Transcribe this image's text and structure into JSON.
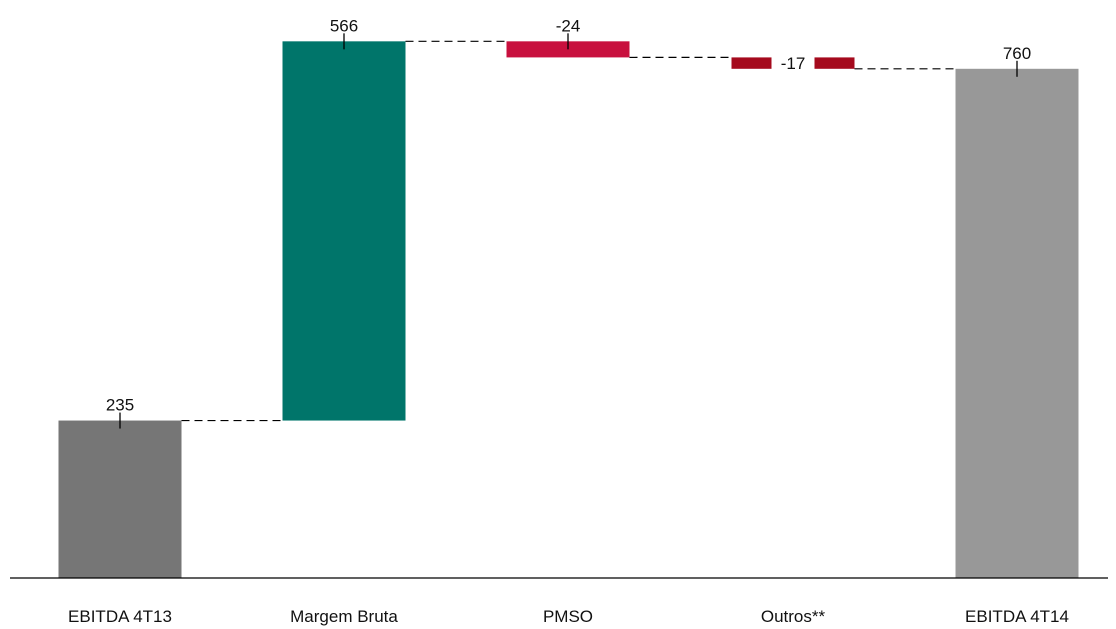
{
  "chart_data": {
    "type": "bar",
    "subtype": "waterfall",
    "title": "",
    "xlabel": "",
    "ylabel": "",
    "grid": false,
    "legend": "none",
    "categories": [
      "EBITDA 4T13",
      "Margem Bruta",
      "PMSO",
      "Outros**",
      "EBITDA 4T14"
    ],
    "values": [
      235,
      566,
      -24,
      -17,
      760
    ],
    "labels": [
      "235",
      "566",
      "-24",
      "-17",
      "760"
    ],
    "bar_kinds": [
      "total",
      "delta",
      "delta",
      "delta",
      "total"
    ],
    "ylim": [
      0,
      800
    ],
    "connectors": "dashed",
    "colors": [
      "#767676",
      "#00756A",
      "#C8103E",
      "#A50A1D",
      "#989898"
    ]
  }
}
